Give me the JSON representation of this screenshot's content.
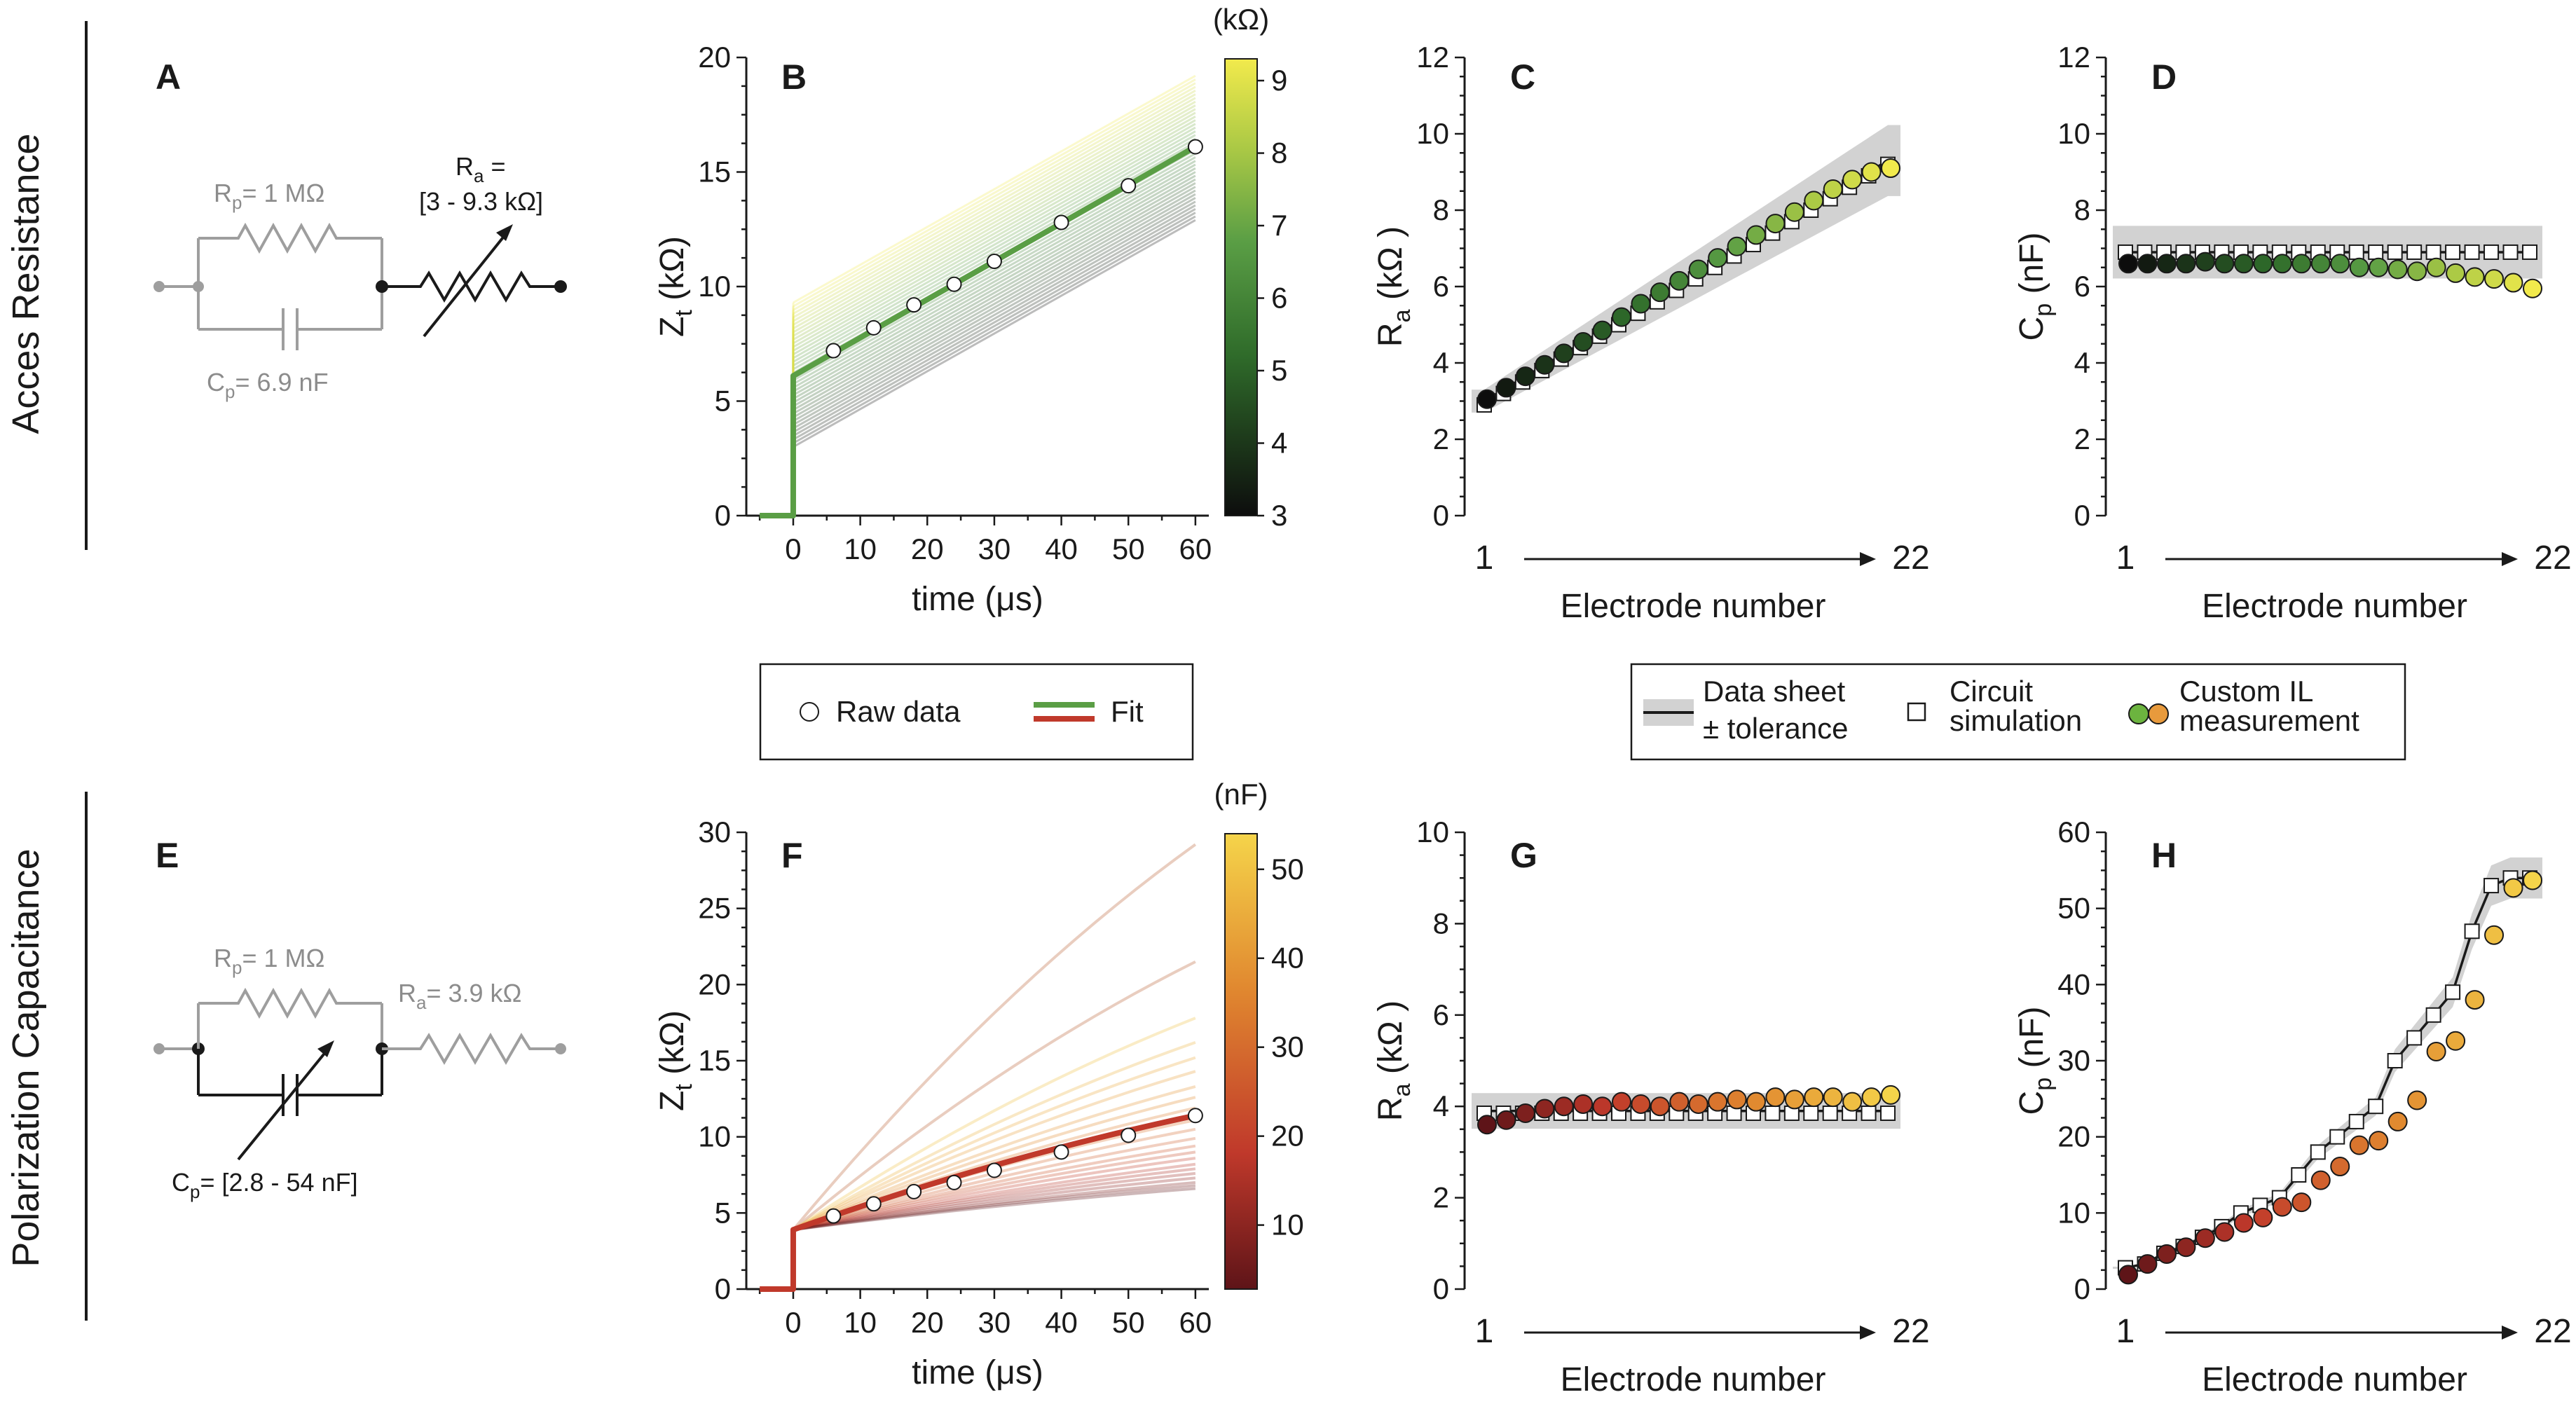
{
  "colors": {
    "green_fit": "#5a9e45",
    "red_fit": "#c0392b",
    "band_gray": "#d2d2d2",
    "circuit_gray": "#9e9e9e",
    "circuit_dark": "#1a1a1a"
  },
  "row_labels": {
    "top": "Acces Resistance",
    "bottom": "Polarization Capacitance"
  },
  "circuits": {
    "A": {
      "letter": "A",
      "rp": "R",
      "rp_sub": "p",
      "rp_val": "= 1 MΩ",
      "cp": "C",
      "cp_sub": "p",
      "cp_val": "= 6.9 nF",
      "ra": "R",
      "ra_sub": "a",
      "ra_val": " =",
      "ra_range": "[3 - 9.3 kΩ]"
    },
    "E": {
      "letter": "E",
      "rp": "R",
      "rp_sub": "p",
      "rp_val": "= 1 MΩ",
      "ra": "R",
      "ra_sub": "a",
      "ra_val": "= 3.9 kΩ",
      "cp": "C",
      "cp_sub": "p",
      "cp_val": "= [2.8 - 54 nF]"
    }
  },
  "legend_fit": {
    "raw": "Raw data",
    "fit": "Fit"
  },
  "legend_sim": {
    "sheet_line1": "Data sheet",
    "sheet_line2": "± tolerance",
    "circuit_line1": "Circuit",
    "circuit_line2": "simulation",
    "custom_line1": "Custom IL",
    "custom_line2": "measurement"
  },
  "chart_data": [
    {
      "panel": "B",
      "type": "line",
      "xlabel": "time (μs)",
      "ylabel": "Z",
      "ylabel_sub": "t",
      "ylabel_unit": " (kΩ)",
      "xlim": [
        -7,
        62
      ],
      "ylim": [
        0,
        20
      ],
      "xticks": [
        0,
        10,
        20,
        30,
        40,
        50,
        60
      ],
      "yticks": [
        0,
        5,
        10,
        15,
        20
      ],
      "step_value": 6.1,
      "raw_x": [
        6,
        12,
        18,
        24,
        30,
        40,
        50,
        60
      ],
      "raw_y": [
        7.2,
        8.2,
        9.2,
        10.1,
        11.1,
        12.8,
        14.4,
        16.1
      ],
      "fit_end": 16.1,
      "family": "Ra 3-9.3 kOhm (Zt at 0: Ra, slope fixed by Cp)",
      "colorbar": {
        "unit": "(kΩ)",
        "min": 3,
        "max": 9.3,
        "ticks": [
          3,
          4,
          5,
          6,
          7,
          8,
          9
        ]
      }
    },
    {
      "panel": "C",
      "type": "scatter",
      "xlabel": "Electrode number",
      "ylabel": "R",
      "ylabel_sub": "a",
      "ylabel_unit": " (kΩ )",
      "x_start_label": "1",
      "x_end_label": "22",
      "ylim": [
        0,
        12
      ],
      "yticks": [
        0,
        2,
        4,
        6,
        8,
        10,
        12
      ],
      "datasheet": [
        3.0,
        3.3,
        3.6,
        3.9,
        4.2,
        4.5,
        4.8,
        5.1,
        5.4,
        5.7,
        6.0,
        6.3,
        6.6,
        6.9,
        7.2,
        7.5,
        7.8,
        8.1,
        8.4,
        8.7,
        9.0,
        9.3
      ],
      "tolerance": 0.1,
      "simulation": [
        2.9,
        3.2,
        3.5,
        3.8,
        4.1,
        4.4,
        4.7,
        5.0,
        5.3,
        5.6,
        5.9,
        6.2,
        6.5,
        6.8,
        7.1,
        7.4,
        7.7,
        8.0,
        8.3,
        8.6,
        8.9,
        9.2
      ],
      "measurement": [
        3.05,
        3.35,
        3.65,
        3.95,
        4.25,
        4.55,
        4.85,
        5.2,
        5.55,
        5.85,
        6.15,
        6.45,
        6.75,
        7.05,
        7.35,
        7.65,
        7.95,
        8.25,
        8.55,
        8.8,
        9.0,
        9.1
      ]
    },
    {
      "panel": "D",
      "type": "scatter",
      "xlabel": "Electrode number",
      "ylabel": "C",
      "ylabel_sub": "p",
      "ylabel_unit": " (nF)",
      "x_start_label": "1",
      "x_end_label": "22",
      "ylim": [
        0,
        12
      ],
      "yticks": [
        0,
        2,
        4,
        6,
        8,
        10,
        12
      ],
      "datasheet_value": 6.9,
      "tolerance": 0.1,
      "simulation_value": 6.9,
      "measurement": [
        6.6,
        6.6,
        6.6,
        6.6,
        6.65,
        6.6,
        6.6,
        6.6,
        6.6,
        6.6,
        6.6,
        6.6,
        6.5,
        6.5,
        6.45,
        6.4,
        6.5,
        6.35,
        6.25,
        6.2,
        6.1,
        5.95
      ]
    },
    {
      "panel": "F",
      "type": "line",
      "xlabel": "time (μs)",
      "ylabel": "Z",
      "ylabel_sub": "t",
      "ylabel_unit": " (kΩ)",
      "xlim": [
        -7,
        62
      ],
      "ylim": [
        0,
        30
      ],
      "xticks": [
        0,
        10,
        20,
        30,
        40,
        50,
        60
      ],
      "yticks": [
        0,
        5,
        10,
        15,
        20,
        25,
        30
      ],
      "step_value": 3.9,
      "raw_x": [
        6,
        12,
        18,
        24,
        30,
        40,
        50,
        60
      ],
      "raw_y": [
        4.8,
        5.6,
        6.4,
        7.0,
        7.8,
        9.0,
        10.1,
        11.4
      ],
      "fit_end": 11.4,
      "family_end_values": [
        29.2,
        21.5,
        17.8,
        16.2,
        15.2,
        14.3,
        13.3,
        12.6,
        11.9,
        11.1,
        10.5,
        9.9,
        9.4,
        9.0,
        8.6,
        8.2,
        7.9,
        7.6,
        7.3,
        7.0,
        6.8,
        6.6
      ],
      "colorbar": {
        "unit": "(nF)",
        "min": 2.8,
        "max": 54,
        "ticks": [
          10,
          20,
          30,
          40,
          50
        ]
      }
    },
    {
      "panel": "G",
      "type": "scatter",
      "xlabel": "Electrode number",
      "ylabel": "R",
      "ylabel_sub": "a",
      "ylabel_unit": " (kΩ )",
      "x_start_label": "1",
      "x_end_label": "22",
      "ylim": [
        0,
        10
      ],
      "yticks": [
        0,
        2,
        4,
        6,
        8,
        10
      ],
      "datasheet_value": 3.9,
      "tolerance": 0.1,
      "simulation_value": 3.85,
      "measurement": [
        3.6,
        3.7,
        3.85,
        3.95,
        4.0,
        4.05,
        4.0,
        4.1,
        4.05,
        4.0,
        4.1,
        4.05,
        4.1,
        4.15,
        4.1,
        4.2,
        4.15,
        4.2,
        4.2,
        4.1,
        4.2,
        4.25
      ]
    },
    {
      "panel": "H",
      "type": "scatter",
      "xlabel": "Electrode number",
      "ylabel": "C",
      "ylabel_sub": "p",
      "ylabel_unit": " (nF)",
      "x_start_label": "1",
      "x_end_label": "22",
      "ylim": [
        0,
        60
      ],
      "yticks": [
        0,
        10,
        20,
        30,
        40,
        50,
        60
      ],
      "datasheet": [
        2.8,
        3.3,
        4.7,
        5.6,
        6.8,
        8.2,
        10,
        11,
        12,
        15,
        18,
        20,
        22,
        24,
        30,
        33,
        36,
        39,
        47,
        53,
        54,
        54
      ],
      "tolerance": 0.05,
      "simulation": [
        2.8,
        3.3,
        4.7,
        5.6,
        6.8,
        8.2,
        10,
        11,
        12,
        15,
        18,
        20,
        22,
        24,
        30,
        33,
        36,
        39,
        47,
        53,
        54,
        54
      ],
      "measurement": [
        1.9,
        3.3,
        4.6,
        5.5,
        6.7,
        7.5,
        8.7,
        9.4,
        10.8,
        11.4,
        14.3,
        16.1,
        18.9,
        19.5,
        22.0,
        24.8,
        31.2,
        32.6,
        38.0,
        46.5,
        52.7,
        53.7
      ]
    }
  ]
}
